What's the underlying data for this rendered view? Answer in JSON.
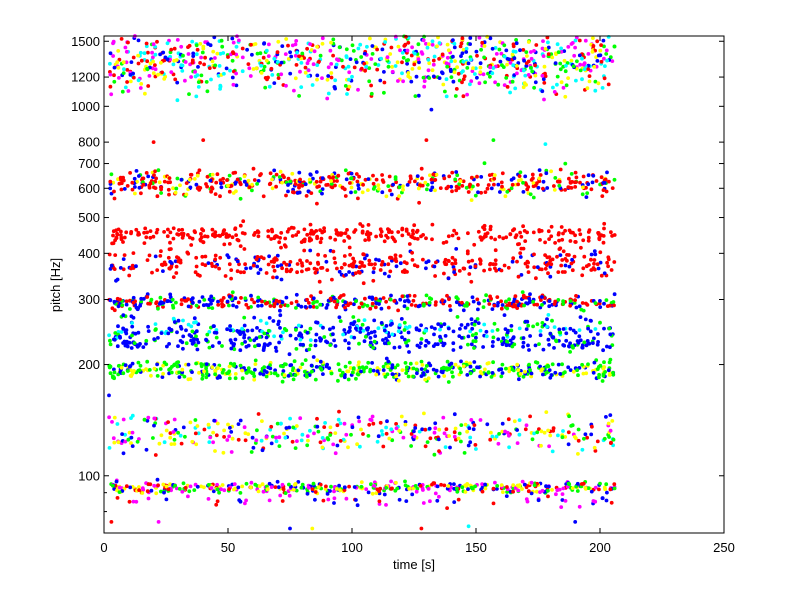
{
  "chart_data": {
    "type": "scatter",
    "title": "",
    "xlabel": "time [s]",
    "ylabel": "pitch [Hz]",
    "xlim": [
      0,
      250
    ],
    "ylim": [
      70,
      1550
    ],
    "yscale": "log",
    "grid": false,
    "legend": "none",
    "xticks": [
      0,
      50,
      100,
      150,
      200,
      250
    ],
    "yticks": [
      100,
      200,
      300,
      400,
      500,
      600,
      700,
      800,
      1000,
      1200,
      1500
    ],
    "series_colors": {
      "red": "#ff0000",
      "blue": "#0000ff",
      "green": "#00ff00",
      "yellow": "#ffff00",
      "magenta": "#ff00ff",
      "cyan": "#00ffff"
    },
    "time_range": [
      2,
      206
    ],
    "pitch_bands": [
      {
        "center": 1330,
        "spread": 0.085,
        "colors": [
          "red",
          "blue",
          "green",
          "yellow",
          "magenta",
          "cyan"
        ],
        "count": 900
      },
      {
        "center": 620,
        "spread": 0.035,
        "colors": [
          "red",
          "red",
          "red",
          "green",
          "blue",
          "yellow"
        ],
        "count": 520
      },
      {
        "center": 450,
        "spread": 0.025,
        "colors": [
          "red"
        ],
        "count": 300
      },
      {
        "center": 375,
        "spread": 0.04,
        "colors": [
          "red",
          "red",
          "red",
          "blue"
        ],
        "count": 380
      },
      {
        "center": 295,
        "spread": 0.02,
        "colors": [
          "blue",
          "blue",
          "red",
          "red",
          "green"
        ],
        "count": 420
      },
      {
        "center": 250,
        "spread": 0.035,
        "colors": [
          "blue",
          "blue",
          "blue",
          "green",
          "cyan"
        ],
        "count": 320
      },
      {
        "center": 228,
        "spread": 0.02,
        "colors": [
          "blue",
          "blue",
          "green"
        ],
        "count": 220
      },
      {
        "center": 193,
        "spread": 0.025,
        "colors": [
          "blue",
          "green",
          "green",
          "yellow"
        ],
        "count": 520
      },
      {
        "center": 130,
        "spread": 0.05,
        "colors": [
          "yellow",
          "green",
          "magenta",
          "cyan",
          "blue",
          "red"
        ],
        "count": 360
      },
      {
        "center": 93,
        "spread": 0.015,
        "colors": [
          "red",
          "magenta",
          "blue",
          "green",
          "yellow"
        ],
        "count": 420
      },
      {
        "center": 86,
        "spread": 0.02,
        "colors": [
          "blue",
          "magenta",
          "red"
        ],
        "count": 60
      }
    ],
    "outliers": [
      {
        "x": 2,
        "y": 165,
        "color": "blue"
      },
      {
        "x": 3,
        "y": 75,
        "color": "red"
      },
      {
        "x": 22,
        "y": 75,
        "color": "magenta"
      },
      {
        "x": 75,
        "y": 72,
        "color": "blue"
      },
      {
        "x": 84,
        "y": 72,
        "color": "yellow"
      },
      {
        "x": 128,
        "y": 72,
        "color": "red"
      },
      {
        "x": 147,
        "y": 73,
        "color": "cyan"
      },
      {
        "x": 190,
        "y": 75,
        "color": "blue"
      },
      {
        "x": 90,
        "y": 1050,
        "color": "magenta"
      },
      {
        "x": 98,
        "y": 1080,
        "color": "cyan"
      },
      {
        "x": 132,
        "y": 980,
        "color": "blue"
      },
      {
        "x": 130,
        "y": 810,
        "color": "red"
      },
      {
        "x": 157,
        "y": 810,
        "color": "green"
      },
      {
        "x": 40,
        "y": 810,
        "color": "red"
      },
      {
        "x": 20,
        "y": 800,
        "color": "red"
      },
      {
        "x": 178,
        "y": 790,
        "color": "cyan"
      }
    ]
  }
}
